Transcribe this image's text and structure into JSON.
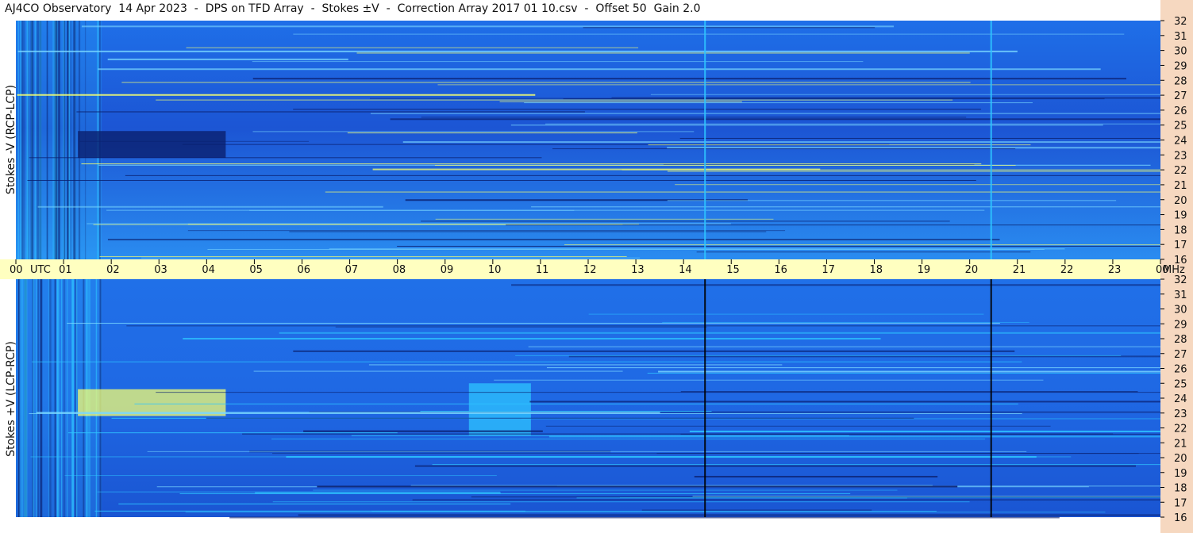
{
  "title": "AJ4CO Observatory  14 Apr 2023  -  DPS on TFD Array  -  Stokes ±V  -  Correction Array 2017 01 10.csv  -  Offset 50  Gain 2.0",
  "colors": {
    "time_strip": "#ffffc0",
    "freq_strip": "#f6d8c0",
    "base": "#1e66e6",
    "dark": "#0a1f6e",
    "cyan": "#2ec4ff",
    "yellow": "#f5ff70",
    "marker": "#000000"
  },
  "chart_data": {
    "type": "heatmap",
    "panels": [
      {
        "name": "top",
        "ylabel": "Stokes -V (RCP-LCP)",
        "polarity": "RCP-LCP"
      },
      {
        "name": "bottom",
        "ylabel": "Stokes +V (LCP-RCP)",
        "polarity": "LCP-RCP"
      }
    ],
    "x_axis": {
      "ticks": [
        "00",
        "01",
        "02",
        "03",
        "04",
        "05",
        "06",
        "07",
        "08",
        "09",
        "10",
        "11",
        "12",
        "13",
        "14",
        "15",
        "16",
        "17",
        "18",
        "19",
        "20",
        "21",
        "22",
        "23",
        "00"
      ],
      "unit": "UTC",
      "range_hours": [
        0,
        24
      ]
    },
    "y_axis": {
      "ticks": [
        "32",
        "31",
        "30",
        "29",
        "28",
        "27",
        "26",
        "25",
        "24",
        "23",
        "22",
        "21",
        "20",
        "19",
        "18",
        "17",
        "16"
      ],
      "unit": "MHz",
      "range": [
        16,
        32
      ]
    },
    "vertical_markers_utc": [
      14.45,
      20.45
    ],
    "features": [
      {
        "panel": "top",
        "desc": "dark region",
        "utc": [
          1.3,
          4.4
        ],
        "mhz": [
          22.8,
          24.6
        ]
      },
      {
        "panel": "bottom",
        "desc": "bright yellow region",
        "utc": [
          1.3,
          4.4
        ],
        "mhz": [
          22.8,
          24.6
        ]
      },
      {
        "panel": "bottom",
        "desc": "cyan region",
        "utc": [
          9.5,
          10.8
        ],
        "mhz": [
          21.5,
          25.0
        ]
      }
    ]
  }
}
